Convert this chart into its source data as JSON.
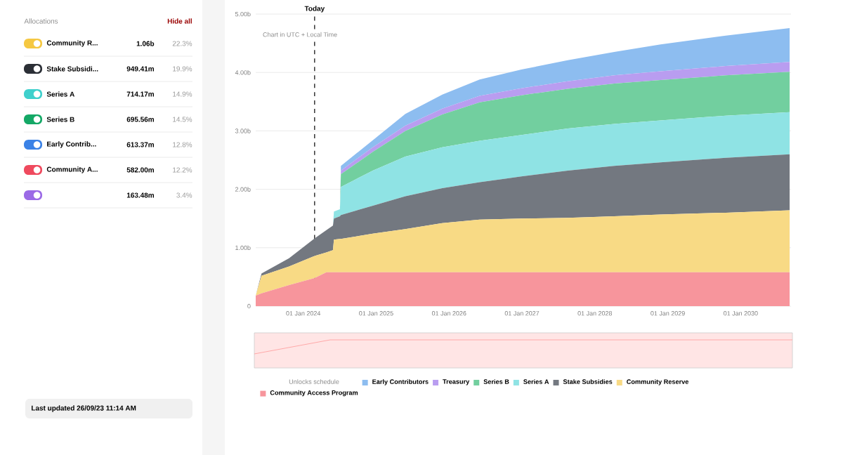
{
  "chart_data": [
    {
      "type": "other",
      "title": "Allocations",
      "categories": [
        "Community R...",
        "Stake Subsidi...",
        "Series A",
        "Series B",
        "Early Contrib...",
        "Community A...",
        null
      ],
      "colors": [
        "#f5c842",
        "#2b2f36",
        "#3fd0cc",
        "#14a866",
        "#3b82e6",
        "#ef4a5e",
        "#9b6ae6"
      ],
      "annotations": [
        "Hide all",
        "1.06b",
        "949.41m",
        "714.17m",
        "695.56m",
        "613.37m",
        "582.00m",
        "163.48m",
        "22.3%",
        "19.9%",
        "14.9%",
        "14.5%",
        "12.8%",
        "12.2%",
        "3.4%",
        "Last updated 26/09/23 11:14 AM"
      ]
    },
    {
      "type": "area",
      "stacked": true,
      "x": [
        "2023-05-08",
        "2023-06-06",
        "2023-10-22",
        "2024-02-27",
        "2024-04-26",
        "2024-05-29",
        "2024-06-03",
        "2024-07-03",
        "2024-07-08",
        "2024-12-15",
        "2025-05-27",
        "2025-11-28",
        "2026-06-03",
        "2026-12-29",
        "2027-08-18",
        "2028-04-07",
        "2028-11-26",
        "2029-10-18",
        "2030-09-03"
      ],
      "series": [
        {
          "name": "Community Access Program",
          "color": "#f7959c",
          "values": [
            0.18,
            0.22,
            0.36,
            0.48,
            0.58,
            0.58,
            0.58,
            0.58,
            0.58,
            0.58,
            0.58,
            0.58,
            0.58,
            0.58,
            0.58,
            0.58,
            0.58,
            0.58,
            0.58
          ]
        },
        {
          "name": "Community Reserve",
          "color": "#f8da85",
          "values": [
            0,
            0.3,
            0.32,
            0.38,
            0.34,
            0.38,
            0.56,
            0.57,
            0.57,
            0.66,
            0.74,
            0.84,
            0.9,
            0.92,
            0.93,
            0.96,
            0.99,
            1.02,
            1.06
          ]
        },
        {
          "name": "Stake Subsidies",
          "color": "#737880",
          "values": [
            0,
            0.04,
            0.14,
            0.3,
            0.38,
            0.42,
            0.36,
            0.39,
            0.41,
            0.48,
            0.56,
            0.6,
            0.64,
            0.72,
            0.81,
            0.86,
            0.89,
            0.94,
            0.96
          ]
        },
        {
          "name": "Series A",
          "color": "#8fe3e4",
          "values": [
            0,
            0,
            0,
            0,
            0,
            0,
            0.12,
            0.12,
            0.48,
            0.6,
            0.68,
            0.7,
            0.71,
            0.71,
            0.72,
            0.72,
            0.72,
            0.72,
            0.72
          ]
        },
        {
          "name": "Series B",
          "color": "#72cf9f",
          "values": [
            0,
            0,
            0,
            0,
            0,
            0,
            0,
            0,
            0.22,
            0.32,
            0.44,
            0.56,
            0.66,
            0.68,
            0.68,
            0.69,
            0.69,
            0.69,
            0.69
          ]
        },
        {
          "name": "Treasury",
          "color": "#b99df0",
          "values": [
            0,
            0,
            0,
            0,
            0,
            0,
            0,
            0,
            0.06,
            0.08,
            0.09,
            0.1,
            0.11,
            0.12,
            0.13,
            0.14,
            0.15,
            0.16,
            0.17
          ]
        },
        {
          "name": "Early Contributors",
          "color": "#8dbdf0",
          "values": [
            0,
            0,
            0,
            0,
            0,
            0,
            0,
            0,
            0.08,
            0.12,
            0.2,
            0.24,
            0.28,
            0.32,
            0.36,
            0.4,
            0.46,
            0.52,
            0.58
          ]
        }
      ],
      "xlim": [
        "2023-05-08",
        "2030-09-10"
      ],
      "xticks": [
        {
          "value": "2024-01-01",
          "label": "01 Jan 2024"
        },
        {
          "value": "2025-01-01",
          "label": "01 Jan 2025"
        },
        {
          "value": "2026-01-01",
          "label": "01 Jan 2026"
        },
        {
          "value": "2027-01-01",
          "label": "01 Jan 2027"
        },
        {
          "value": "2028-01-01",
          "label": "01 Jan 2028"
        },
        {
          "value": "2029-01-01",
          "label": "01 Jan 2029"
        },
        {
          "value": "2030-01-01",
          "label": "01 Jan 2030"
        }
      ],
      "ylim": [
        0,
        5
      ],
      "yticks": [
        0,
        {
          "value": 1,
          "label": "1.00b"
        },
        {
          "value": 2,
          "label": "2.00b"
        },
        {
          "value": 3,
          "label": "3.00b"
        },
        {
          "value": 4,
          "label": "4.00b"
        },
        {
          "value": 5,
          "label": "5.00b"
        }
      ],
      "grid": "y",
      "legend": "bottom",
      "legend_title": "Unlocks schedule",
      "annotations": [
        "Chart in UTC + Local Time"
      ],
      "ref_lines": [
        {
          "axis": "x",
          "value": "2024-02-27",
          "label": "Today",
          "line_style": "dashed"
        }
      ]
    }
  ]
}
